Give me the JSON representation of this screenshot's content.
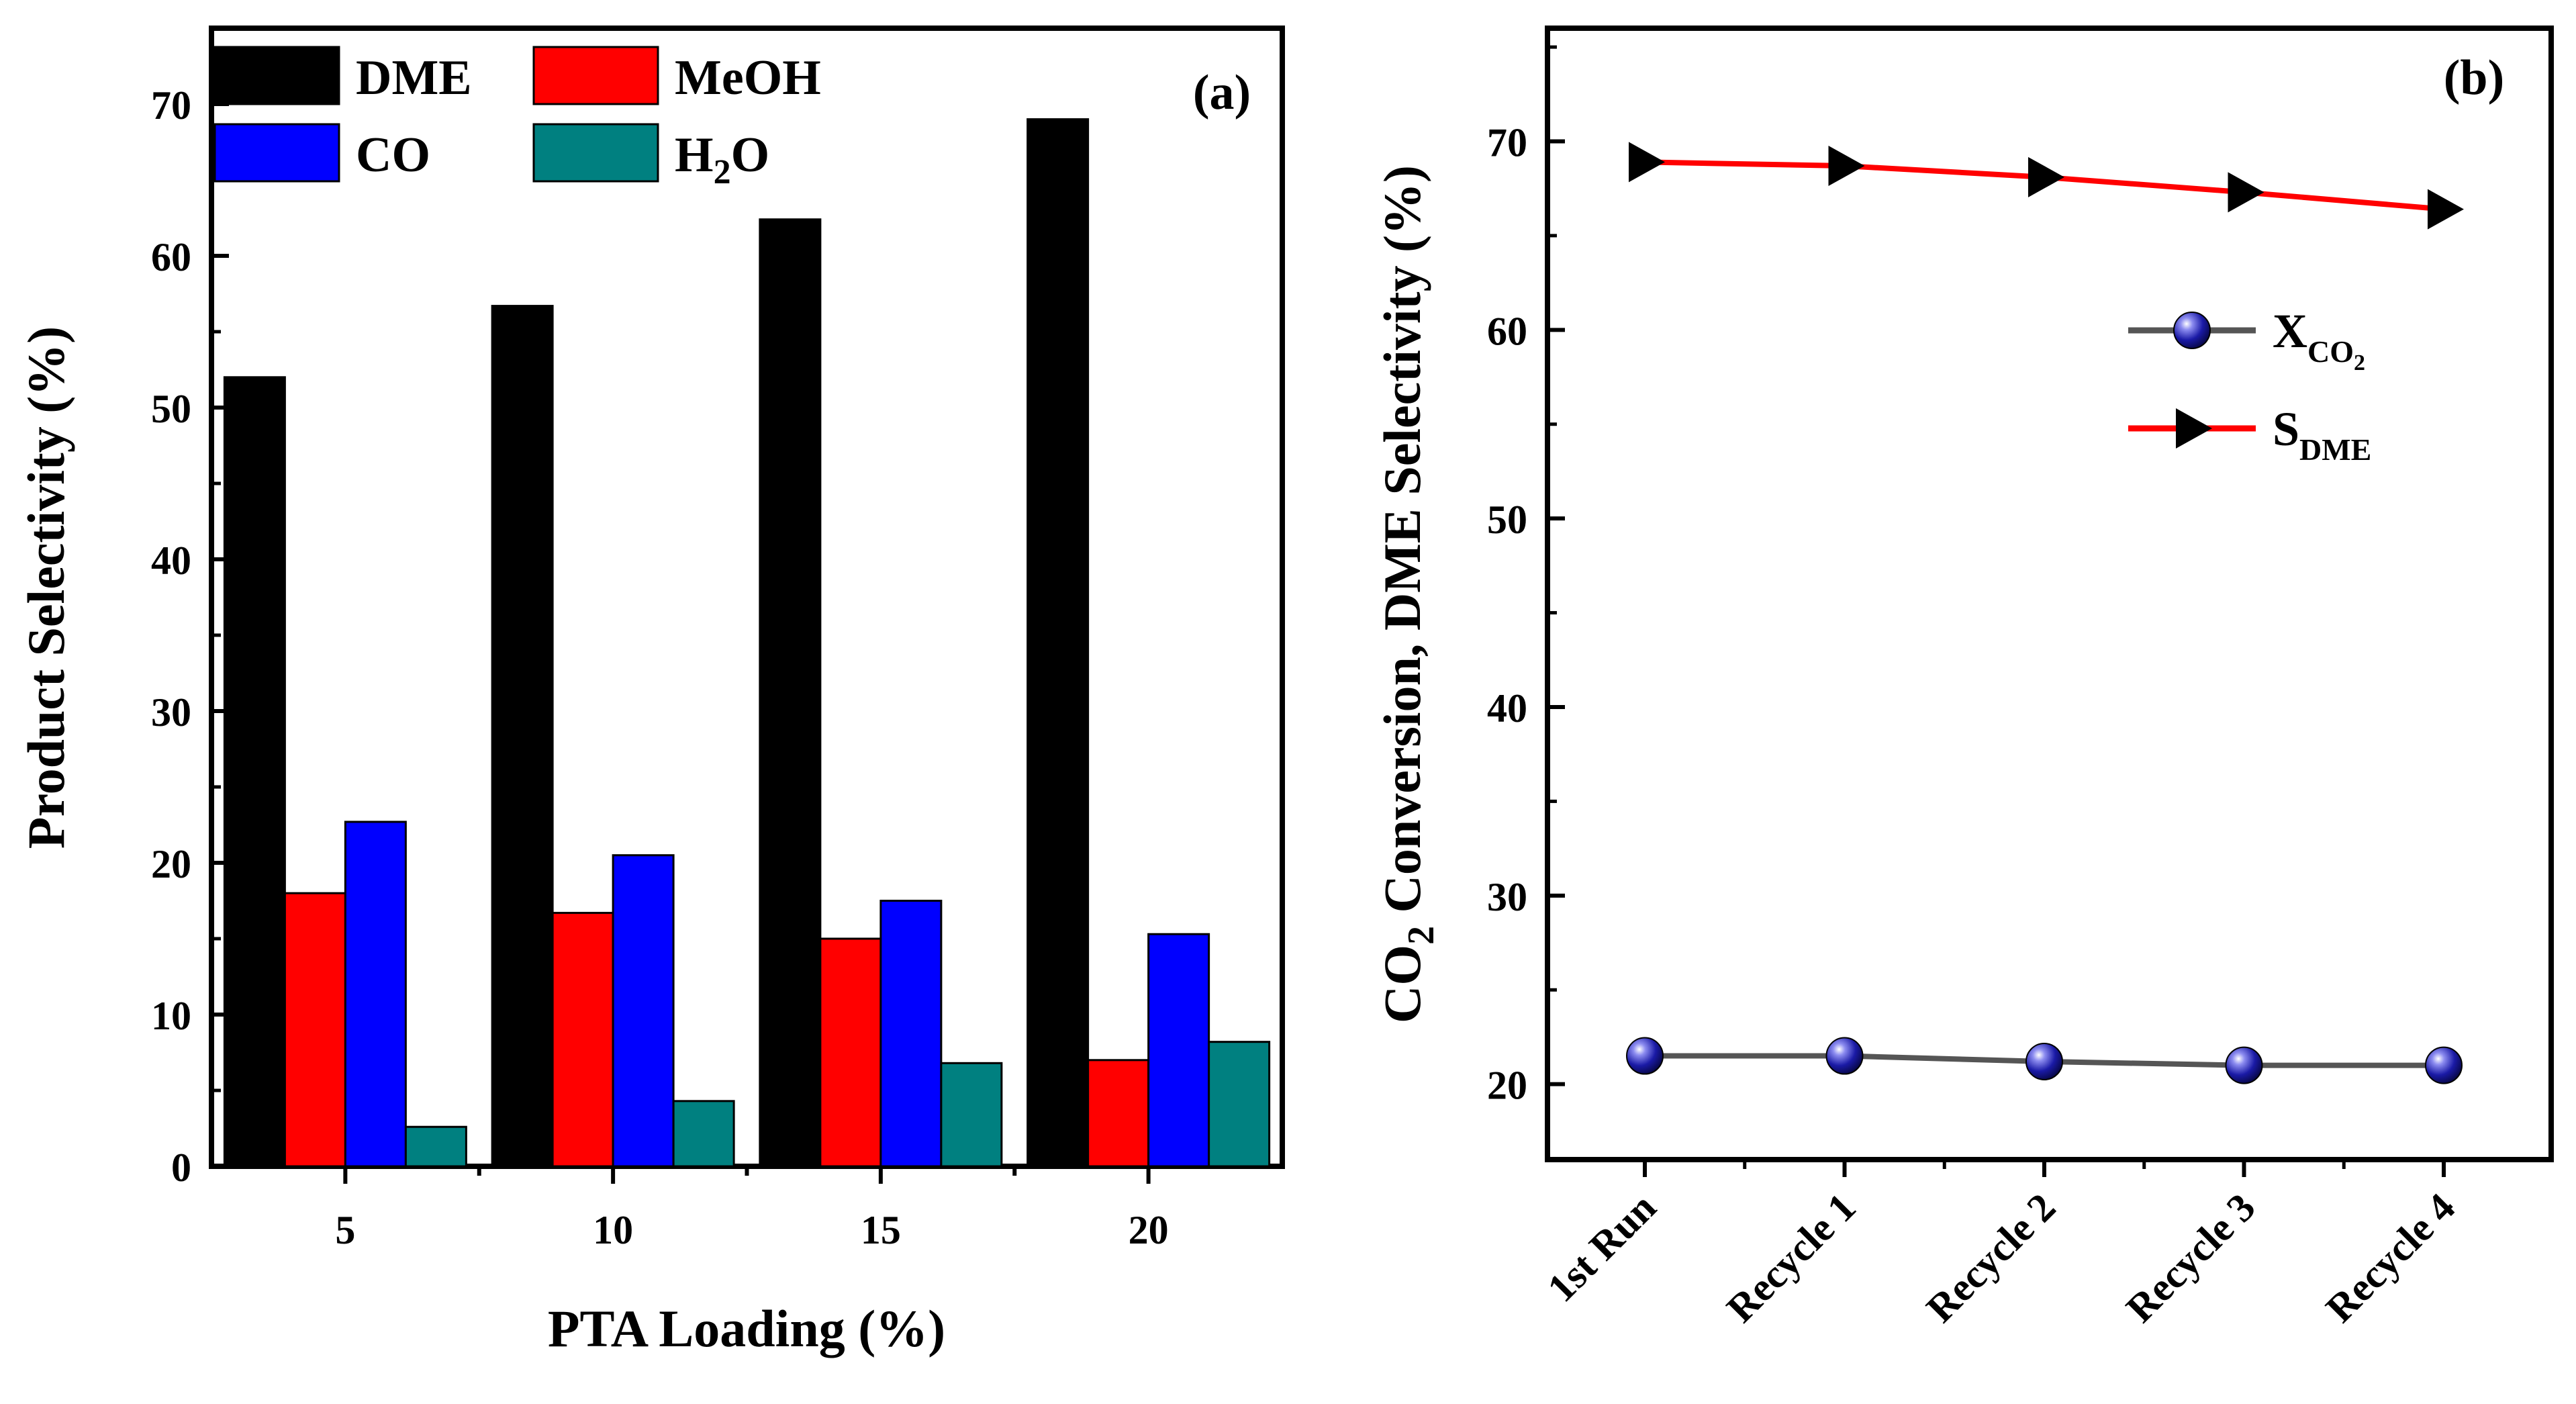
{
  "chart_data": [
    {
      "type": "bar",
      "panel_label": "(a)",
      "xlabel": "PTA Loading (%)",
      "ylabel": "Product Selectivity (%)",
      "categories": [
        "5",
        "10",
        "15",
        "20"
      ],
      "ylim": [
        0,
        75
      ],
      "yticks": [
        0,
        10,
        20,
        30,
        40,
        50,
        60,
        70
      ],
      "legend_position": "top",
      "series": [
        {
          "name": "DME",
          "color": "#000000",
          "values": [
            52.0,
            56.7,
            62.4,
            69.0
          ]
        },
        {
          "name": "MeOH",
          "color": "#ff0000",
          "values": [
            18.0,
            16.7,
            15.0,
            7.0
          ]
        },
        {
          "name": "CO",
          "color": "#0000ff",
          "values": [
            22.7,
            20.5,
            17.5,
            15.3
          ]
        },
        {
          "name": "H2O",
          "name_main": "H",
          "name_sub": "2",
          "name_tail": "O",
          "color": "#008080",
          "values": [
            2.6,
            4.3,
            6.8,
            8.2
          ]
        }
      ]
    },
    {
      "type": "line",
      "panel_label": "(b)",
      "ylabel_main": "CO",
      "ylabel_sub": "2",
      "ylabel_tail": " Conversion, DME Selectivity (%)",
      "categories": [
        "1st Run",
        "Recycle 1",
        "Recycle 2",
        "Recycle 3",
        "Recycle 4"
      ],
      "ylim": [
        16,
        76
      ],
      "yticks": [
        20,
        30,
        40,
        50,
        60,
        70
      ],
      "legend_position": "top-right",
      "series": [
        {
          "name": "X_CO2",
          "label_main": "X",
          "label_sub": "CO",
          "label_subsub": "2",
          "color": "#555555",
          "marker": "sphere",
          "marker_color": "#1a1aa6",
          "values": [
            21.5,
            21.5,
            21.2,
            21.0,
            21.0
          ]
        },
        {
          "name": "S_DME",
          "label_main": "S",
          "label_sub": "DME",
          "color": "#ff0000",
          "marker": "triangle-right",
          "marker_color": "#000000",
          "values": [
            68.9,
            68.7,
            68.1,
            67.3,
            66.4
          ]
        }
      ]
    }
  ]
}
